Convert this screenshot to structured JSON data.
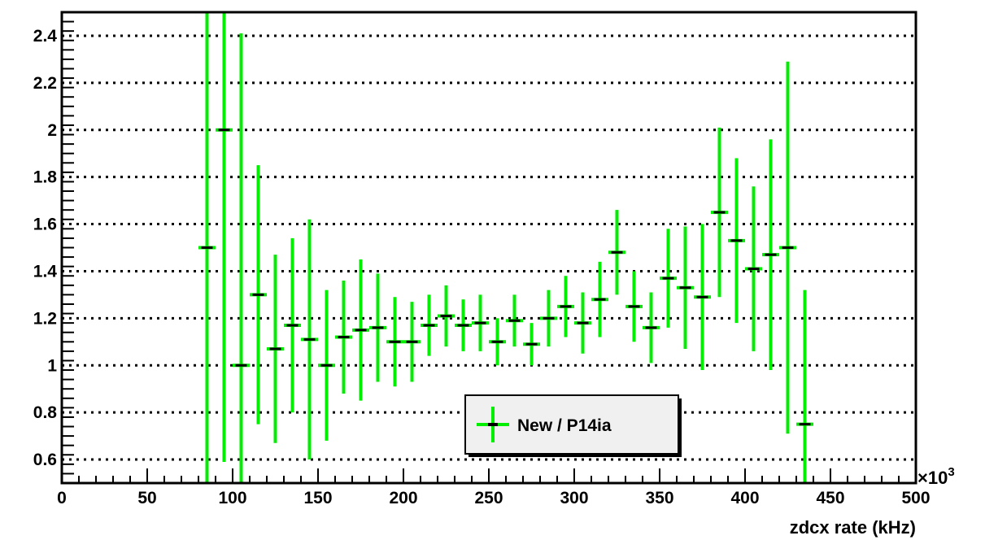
{
  "chart_data": {
    "type": "scatter",
    "title": "",
    "xlabel": "zdcx rate (kHz)",
    "x_multiplier_label": "×10",
    "x_multiplier_exp": "3",
    "ylabel": "",
    "xlim": [
      0,
      500
    ],
    "ylim": [
      0.5,
      2.5
    ],
    "x_ticks": [
      0,
      50,
      100,
      150,
      200,
      250,
      300,
      350,
      400,
      450,
      500
    ],
    "x_tick_labels": [
      "0",
      "50",
      "100",
      "150",
      "200",
      "250",
      "300",
      "350",
      "400",
      "450",
      "500"
    ],
    "y_ticks": [
      0.6,
      0.8,
      1.0,
      1.2,
      1.4,
      1.6,
      1.8,
      2.0,
      2.2,
      2.4
    ],
    "y_tick_labels": [
      "0.6",
      "0.8",
      "1",
      "1.2",
      "1.4",
      "1.6",
      "1.8",
      "2",
      "2.2",
      "2.4"
    ],
    "grid": true,
    "legend_position": "bottom-center",
    "series": [
      {
        "name": "New / P14ia",
        "color": "#00ee00",
        "marker_color": "#000000",
        "bin_half_width": 5,
        "points": [
          {
            "x": 85,
            "y": 1.5,
            "err": 1.5
          },
          {
            "x": 95,
            "y": 2.0,
            "err": 1.41
          },
          {
            "x": 105,
            "y": 1.0,
            "err": 1.41
          },
          {
            "x": 115,
            "y": 1.3,
            "err": 0.55
          },
          {
            "x": 125,
            "y": 1.07,
            "err": 0.4
          },
          {
            "x": 135,
            "y": 1.17,
            "err": 0.37
          },
          {
            "x": 145,
            "y": 1.11,
            "err": 0.51
          },
          {
            "x": 155,
            "y": 1.0,
            "err": 0.32
          },
          {
            "x": 165,
            "y": 1.12,
            "err": 0.24
          },
          {
            "x": 175,
            "y": 1.15,
            "err": 0.3
          },
          {
            "x": 185,
            "y": 1.16,
            "err": 0.23
          },
          {
            "x": 195,
            "y": 1.1,
            "err": 0.19
          },
          {
            "x": 205,
            "y": 1.1,
            "err": 0.17
          },
          {
            "x": 215,
            "y": 1.17,
            "err": 0.13
          },
          {
            "x": 225,
            "y": 1.21,
            "err": 0.13
          },
          {
            "x": 235,
            "y": 1.17,
            "err": 0.11
          },
          {
            "x": 245,
            "y": 1.18,
            "err": 0.12
          },
          {
            "x": 255,
            "y": 1.1,
            "err": 0.1
          },
          {
            "x": 265,
            "y": 1.19,
            "err": 0.11
          },
          {
            "x": 275,
            "y": 1.09,
            "err": 0.09
          },
          {
            "x": 285,
            "y": 1.2,
            "err": 0.12
          },
          {
            "x": 295,
            "y": 1.25,
            "err": 0.13
          },
          {
            "x": 305,
            "y": 1.18,
            "err": 0.13
          },
          {
            "x": 315,
            "y": 1.28,
            "err": 0.16
          },
          {
            "x": 325,
            "y": 1.48,
            "err": 0.18
          },
          {
            "x": 335,
            "y": 1.25,
            "err": 0.15
          },
          {
            "x": 345,
            "y": 1.16,
            "err": 0.15
          },
          {
            "x": 355,
            "y": 1.37,
            "err": 0.21
          },
          {
            "x": 365,
            "y": 1.33,
            "err": 0.26
          },
          {
            "x": 375,
            "y": 1.29,
            "err": 0.31
          },
          {
            "x": 385,
            "y": 1.65,
            "err": 0.36
          },
          {
            "x": 395,
            "y": 1.53,
            "err": 0.35
          },
          {
            "x": 405,
            "y": 1.41,
            "err": 0.35
          },
          {
            "x": 415,
            "y": 1.47,
            "err": 0.49
          },
          {
            "x": 425,
            "y": 1.5,
            "err": 0.79
          },
          {
            "x": 435,
            "y": 0.75,
            "err": 0.57
          }
        ]
      }
    ]
  }
}
